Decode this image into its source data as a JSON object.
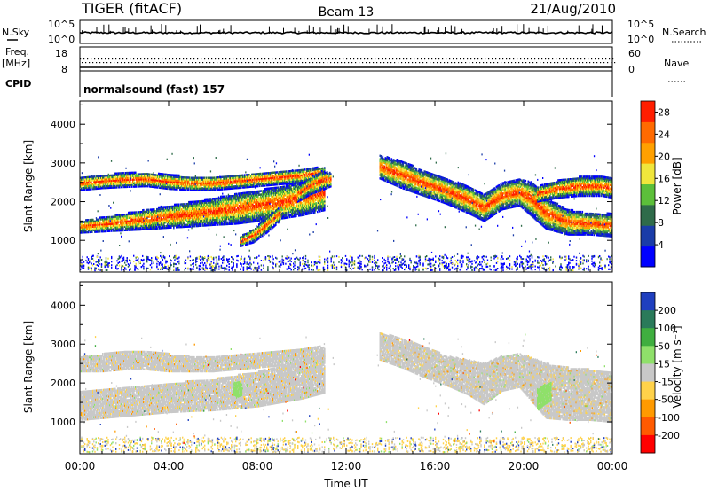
{
  "header": {
    "radar": "TIGER (fitACF)",
    "beam": "Beam 13",
    "date": "21/Aug/2010"
  },
  "colors": {
    "axis": "#000000",
    "scatter": "#c8c8c8"
  },
  "noise_panel": {
    "left_label": "N.Sky",
    "left_ticks": [
      "10^5",
      "10^0"
    ],
    "right_ticks": [
      "10^5",
      "10^0"
    ],
    "right_label": "N.Search"
  },
  "freq_panel": {
    "left_label_top": "Freq.",
    "left_label_bottom": "[MHz]",
    "left_ticks": [
      "18",
      "8"
    ],
    "right_ticks": [
      "60",
      "0"
    ],
    "right_label": "Nave"
  },
  "cpid_panel": {
    "label": "CPID",
    "program": "normalsound (fast) 157"
  },
  "chart_data": [
    {
      "type": "heatmap",
      "panel": "power",
      "ylabel": "Slant Range [km]",
      "y_ticks": [
        "1000",
        "2000",
        "3000",
        "4000"
      ],
      "ylim": [
        180,
        4600
      ],
      "xlim": [
        "00:00",
        "24:00"
      ],
      "colorbar": {
        "label": "Power [dB]",
        "ticks": [
          "4",
          "8",
          "12",
          "16",
          "20",
          "24",
          "28"
        ],
        "range": [
          0,
          30
        ],
        "colors": [
          "#0000ff",
          "#1a3ca8",
          "#2f6b4a",
          "#5cbf3a",
          "#f0e63c",
          "#ffa000",
          "#ff6a00",
          "#ff1e00"
        ]
      },
      "echo_bands": [
        {
          "name": "main",
          "x": [
            0,
            1,
            2,
            3,
            4,
            5,
            6,
            7,
            8,
            9,
            10,
            11
          ],
          "low": [
            1200,
            1230,
            1260,
            1290,
            1330,
            1360,
            1400,
            1430,
            1500,
            1560,
            1650,
            1780
          ],
          "high": [
            1500,
            1600,
            1700,
            1800,
            1900,
            2000,
            2100,
            2200,
            2300,
            2400,
            2550,
            2700
          ]
        },
        {
          "name": "upper",
          "x": [
            0,
            1,
            2,
            3,
            4,
            5,
            6,
            7,
            8,
            9,
            10,
            11
          ],
          "low": [
            2300,
            2350,
            2380,
            2400,
            2330,
            2300,
            2300,
            2350,
            2400,
            2450,
            2500,
            2600
          ],
          "high": [
            2650,
            2700,
            2750,
            2750,
            2700,
            2650,
            2650,
            2700,
            2750,
            2800,
            2850,
            2900
          ]
        },
        {
          "name": "afternoon",
          "x": [
            13.5,
            14.5,
            15.5,
            16.5,
            17.5,
            18.2,
            19,
            19.8,
            20.4,
            21,
            22,
            23,
            24
          ],
          "low": [
            2600,
            2350,
            2150,
            1950,
            1700,
            1500,
            1800,
            1900,
            1600,
            1300,
            1150,
            1150,
            1100
          ],
          "high": [
            3200,
            3050,
            2800,
            2600,
            2400,
            2200,
            2500,
            2600,
            2500,
            2100,
            1800,
            1700,
            1700
          ]
        },
        {
          "name": "afternoon-upper",
          "x": [
            20.6,
            21.5,
            22.5,
            23.5,
            24
          ],
          "low": [
            2000,
            2100,
            2150,
            2150,
            2100
          ],
          "high": [
            2400,
            2550,
            2650,
            2650,
            2600
          ]
        },
        {
          "name": "cusp-08h",
          "x": [
            7.2,
            7.8,
            8.4,
            9.0
          ],
          "low": [
            850,
            950,
            1200,
            1500
          ],
          "high": [
            1100,
            1300,
            1600,
            1900
          ]
        },
        {
          "name": "late-10h",
          "x": [
            9.8,
            10.4,
            10.9,
            11.3
          ],
          "low": [
            2000,
            2200,
            2300,
            2400
          ],
          "high": [
            2400,
            2650,
            2800,
            2750
          ]
        }
      ]
    },
    {
      "type": "heatmap",
      "panel": "velocity",
      "ylabel": "Slant Range [km]",
      "y_ticks": [
        "1000",
        "2000",
        "3000",
        "4000"
      ],
      "ylim": [
        180,
        4600
      ],
      "xlim": [
        "00:00",
        "24:00"
      ],
      "colorbar": {
        "label": "Velocity [m s⁻¹]",
        "ticks": [
          "200",
          "100",
          "50",
          "15",
          "-15",
          "-50",
          "-100",
          "-200"
        ],
        "colors": [
          "#1f3fbf",
          "#2a7a5a",
          "#3fae3f",
          "#8fe06a",
          "#c8c8c8",
          "#ffd24a",
          "#ff9a00",
          "#ff5a00",
          "#ff0000"
        ]
      },
      "echo_bands": [
        {
          "name": "main",
          "x": [
            0,
            1,
            2,
            3,
            4,
            5,
            6,
            7,
            8,
            9,
            10,
            11
          ],
          "low": [
            1050,
            1100,
            1150,
            1200,
            1250,
            1280,
            1300,
            1350,
            1400,
            1500,
            1600,
            1750
          ],
          "high": [
            1800,
            1850,
            1900,
            1950,
            2000,
            2050,
            2100,
            2200,
            2300,
            2400,
            2550,
            2750
          ]
        },
        {
          "name": "upper",
          "x": [
            0,
            1,
            2,
            3,
            4,
            5,
            6,
            7,
            8,
            9,
            10,
            11
          ],
          "low": [
            2300,
            2300,
            2350,
            2350,
            2300,
            2300,
            2300,
            2350,
            2400,
            2450,
            2500,
            2600
          ],
          "high": [
            2700,
            2750,
            2800,
            2800,
            2750,
            2700,
            2700,
            2750,
            2800,
            2850,
            2900,
            2950
          ]
        },
        {
          "name": "afternoon",
          "x": [
            13.5,
            14.5,
            15.5,
            16.5,
            17.5,
            18.2,
            19,
            19.8,
            20.4,
            21,
            22,
            23,
            24
          ],
          "low": [
            2600,
            2400,
            2150,
            1950,
            1700,
            1450,
            1800,
            1900,
            1500,
            1100,
            1050,
            1050,
            1000
          ],
          "high": [
            3300,
            3150,
            2950,
            2700,
            2600,
            2500,
            2700,
            2750,
            2650,
            2500,
            2400,
            2350,
            2300
          ]
        },
        {
          "name": "green-blob",
          "x": [
            6.9,
            7.1,
            7.3
          ],
          "low": [
            1700,
            1650,
            1700
          ],
          "high": [
            2000,
            2050,
            1950
          ]
        },
        {
          "name": "green-streak",
          "x": [
            20.6,
            20.9,
            21.2
          ],
          "low": [
            1300,
            1450,
            1550
          ],
          "high": [
            1850,
            1950,
            2000
          ]
        }
      ],
      "gap_utc": [
        11.5,
        13.2
      ]
    }
  ],
  "x_axis": {
    "ticks": [
      "00:00",
      "04:00",
      "08:00",
      "12:00",
      "16:00",
      "20:00",
      "00:00"
    ],
    "label": "Time UT"
  }
}
